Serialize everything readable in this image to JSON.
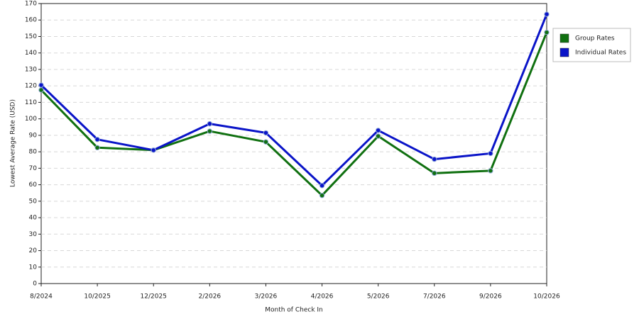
{
  "chart_data": {
    "type": "line",
    "x_label": "Month of Check In",
    "y_label": "Lowest Average Rate (USD)",
    "categories": [
      "8/2024",
      "10/2025",
      "12/2025",
      "2/2026",
      "3/2026",
      "4/2026",
      "5/2026",
      "7/2026",
      "9/2026",
      "10/2026"
    ],
    "series": [
      {
        "name": "Group Rates",
        "color": "#107010",
        "values": [
          117.5,
          82.5,
          81,
          92.5,
          86,
          53.5,
          89.5,
          67,
          68.5,
          152.5
        ]
      },
      {
        "name": "Individual Rates",
        "color": "#0a14c8",
        "values": [
          120.5,
          87.5,
          81,
          97,
          91.5,
          59.5,
          93,
          75.5,
          79,
          163.5
        ]
      }
    ],
    "ylim": [
      0,
      170
    ],
    "yticks": [
      0,
      10,
      20,
      30,
      40,
      50,
      60,
      70,
      80,
      90,
      100,
      110,
      120,
      130,
      140,
      150,
      160,
      170
    ],
    "grid": true,
    "legend": "right"
  }
}
